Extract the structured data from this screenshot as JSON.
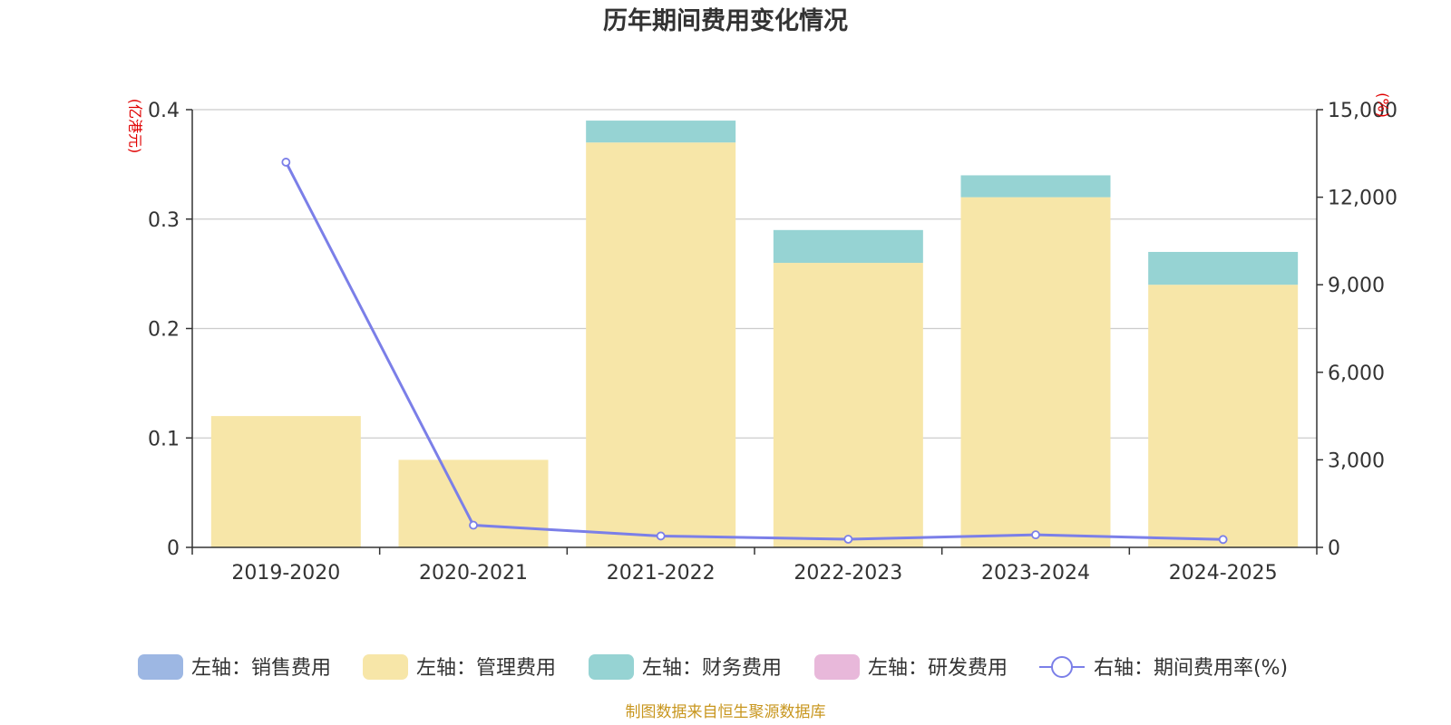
{
  "chart_data": {
    "type": "bar",
    "title": "历年期间费用变化情况",
    "left_axis_unit": "(亿港元)",
    "right_axis_unit": "(%)",
    "categories": [
      "2019-2020",
      "2020-2021",
      "2021-2022",
      "2022-2023",
      "2023-2024",
      "2024-2025"
    ],
    "left_ylim": [
      0,
      0.4
    ],
    "left_yticks": [
      "0",
      "0.1",
      "0.2",
      "0.3",
      "0.4"
    ],
    "right_ylim": [
      0,
      15000
    ],
    "right_yticks": [
      "0",
      "3,000",
      "6,000",
      "9,000",
      "12,000",
      "15,000"
    ],
    "grid": true,
    "legend_position": "bottom",
    "series": [
      {
        "name": "左轴：销售费用",
        "kind": "bar",
        "axis": "left",
        "color": "#9db7e3",
        "values": [
          0,
          0,
          0,
          0,
          0,
          0
        ]
      },
      {
        "name": "左轴：管理费用",
        "kind": "bar",
        "axis": "left",
        "color": "#f7e6a8",
        "values": [
          0.12,
          0.08,
          0.37,
          0.26,
          0.32,
          0.24
        ]
      },
      {
        "name": "左轴：财务费用",
        "kind": "bar",
        "axis": "left",
        "color": "#96d3d3",
        "values": [
          0,
          0,
          0.02,
          0.03,
          0.02,
          0.03
        ]
      },
      {
        "name": "左轴：研发费用",
        "kind": "bar",
        "axis": "left",
        "color": "#e8b8da",
        "values": [
          0,
          0,
          0,
          0,
          0,
          0
        ]
      },
      {
        "name": "右轴：期间费用率(%)",
        "kind": "line",
        "axis": "right",
        "color": "#7b7fe8",
        "values": [
          13200,
          760,
          390,
          280,
          430,
          270
        ]
      }
    ],
    "source": "制图数据来自恒生聚源数据库"
  }
}
